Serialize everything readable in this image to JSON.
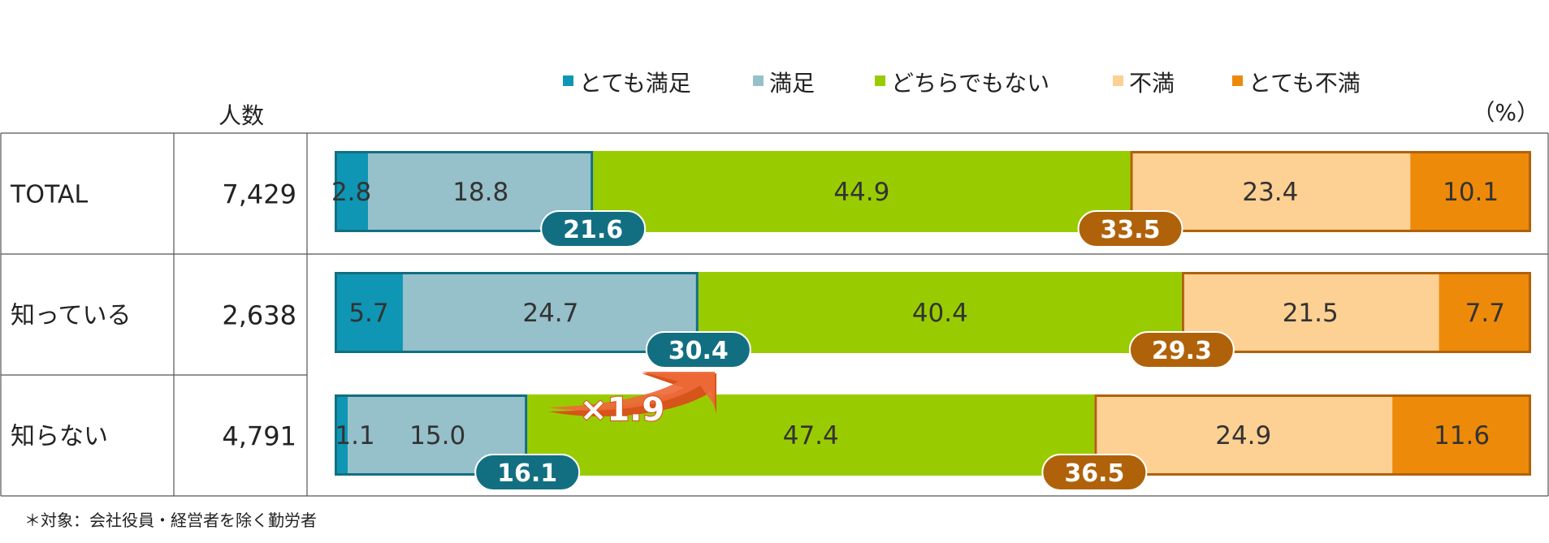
{
  "chart_data": {
    "type": "bar",
    "orientation": "horizontal",
    "stacked": true,
    "unit_label": "（%）",
    "count_header": "人数",
    "legend": [
      {
        "name": "とても満足",
        "color": "#0e96b4"
      },
      {
        "name": "満足",
        "color": "#96c0ca"
      },
      {
        "name": "どちらでもない",
        "color": "#99cc00"
      },
      {
        "name": "不満",
        "color": "#fdd093"
      },
      {
        "name": "とても不満",
        "color": "#ee8a0a"
      }
    ],
    "categories": [
      "TOTAL",
      "知っている",
      "知らない"
    ],
    "counts": [
      "7,429",
      "2,638",
      "4,791"
    ],
    "series": [
      {
        "name": "とても満足",
        "values": [
          2.8,
          5.7,
          1.1
        ],
        "labels": [
          "2.8",
          "5.7",
          "1.1"
        ]
      },
      {
        "name": "満足",
        "values": [
          18.8,
          24.7,
          15.0
        ],
        "labels": [
          "18.8",
          "24.7",
          "15.0"
        ]
      },
      {
        "name": "どちらでもない",
        "values": [
          44.9,
          40.4,
          47.4
        ],
        "labels": [
          "44.9",
          "40.4",
          "47.4"
        ]
      },
      {
        "name": "不満",
        "values": [
          23.4,
          21.5,
          24.9
        ],
        "labels": [
          "23.4",
          "21.5",
          "24.9"
        ]
      },
      {
        "name": "とても不満",
        "values": [
          10.1,
          7.7,
          11.6
        ],
        "labels": [
          "10.1",
          "7.7",
          "11.6"
        ]
      }
    ],
    "satisfied_total": {
      "values": [
        21.6,
        30.4,
        16.1
      ],
      "labels": [
        "21.6",
        "30.4",
        "16.1"
      ],
      "color": "#126f82"
    },
    "dissatisfied_total": {
      "values": [
        33.5,
        29.3,
        36.5
      ],
      "labels": [
        "33.5",
        "29.3",
        "36.5"
      ],
      "color": "#b0620a"
    },
    "annotation": {
      "text": "×1.9",
      "color": "#ee6a3a"
    },
    "xlim": [
      0,
      100
    ]
  },
  "footnote": "＊対象：会社役員・経営者を除く勤労者"
}
